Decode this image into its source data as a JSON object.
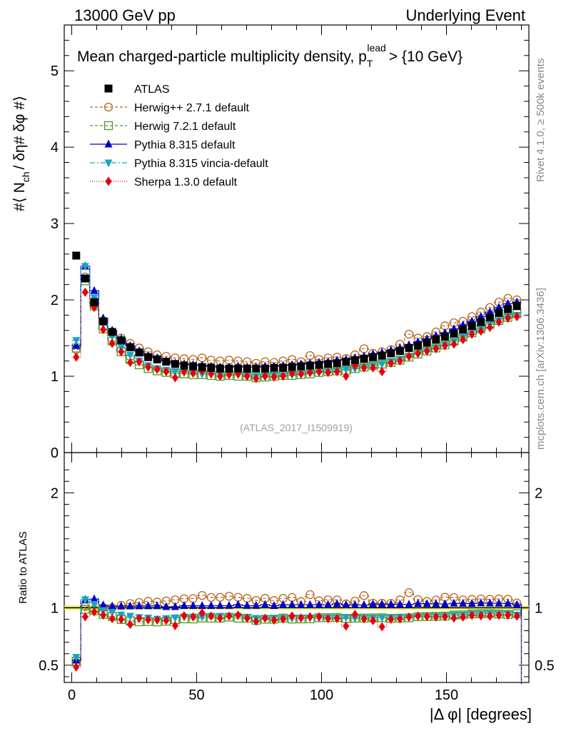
{
  "header": {
    "left": "13000 GeV pp",
    "right": "Underlying Event"
  },
  "side_labels": {
    "rivet": "Rivet 4.1.0, ≥ 500k events",
    "mcplots": "mcplots.cern.ch [arXiv:1306.3436]"
  },
  "chart_data": [
    {
      "type": "scatter",
      "title": "Mean charged-particle multiplicity density, p_T^lead > {10 GeV}",
      "title_main": "Mean charged-particle multiplicity density, p",
      "title_sup": "lead",
      "title_sub": "T",
      "title_tail": "> {10 GeV}",
      "ylabel": "#⟨ N_ch / δη# δφ #⟩",
      "ylabel_parts": [
        "#⟨ N",
        "ch",
        "/ δη# δφ #⟩"
      ],
      "watermark": "(ATLAS_2017_I1509919)",
      "xlim": [
        -3,
        183
      ],
      "ylim": [
        0,
        5.6
      ],
      "yticks": [
        0,
        1,
        2,
        3,
        4,
        5
      ],
      "ytick_labels": [
        "0",
        "1",
        "2",
        "3",
        "4",
        "5"
      ],
      "legend_position": "top-left",
      "bins": [
        1.8,
        5.4,
        9.0,
        12.6,
        16.2,
        19.8,
        23.4,
        27.0,
        30.6,
        34.2,
        37.8,
        41.4,
        45.0,
        48.6,
        52.2,
        55.8,
        59.4,
        63.0,
        66.6,
        70.2,
        73.8,
        77.4,
        81.0,
        84.6,
        88.2,
        91.8,
        95.4,
        99.0,
        102.6,
        106.2,
        109.8,
        113.4,
        117.0,
        120.6,
        124.2,
        127.8,
        131.4,
        135.0,
        138.6,
        142.2,
        145.8,
        149.4,
        153.0,
        156.6,
        160.2,
        163.8,
        167.4,
        171.0,
        174.6,
        178.2
      ],
      "series": [
        {
          "name": "ATLAS",
          "color": "#000000",
          "marker": "square-filled",
          "line": "none",
          "values": [
            2.58,
            2.28,
            1.97,
            1.72,
            1.58,
            1.47,
            1.38,
            1.31,
            1.25,
            1.22,
            1.19,
            1.16,
            1.14,
            1.13,
            1.12,
            1.11,
            1.1,
            1.1,
            1.1,
            1.1,
            1.1,
            1.1,
            1.11,
            1.11,
            1.12,
            1.13,
            1.14,
            1.15,
            1.16,
            1.17,
            1.19,
            1.21,
            1.23,
            1.25,
            1.27,
            1.3,
            1.33,
            1.37,
            1.4,
            1.44,
            1.48,
            1.52,
            1.56,
            1.61,
            1.66,
            1.71,
            1.77,
            1.83,
            1.88,
            1.92
          ]
        },
        {
          "name": "Herwig++ 2.7.1 default",
          "color": "#b5651d",
          "marker": "circle-open",
          "line": "dashed",
          "values": [
            1.35,
            2.3,
            1.94,
            1.72,
            1.58,
            1.5,
            1.43,
            1.37,
            1.32,
            1.28,
            1.26,
            1.24,
            1.23,
            1.22,
            1.24,
            1.21,
            1.2,
            1.21,
            1.2,
            1.19,
            1.17,
            1.19,
            1.18,
            1.2,
            1.22,
            1.19,
            1.27,
            1.22,
            1.24,
            1.25,
            1.23,
            1.28,
            1.36,
            1.3,
            1.32,
            1.35,
            1.42,
            1.55,
            1.5,
            1.52,
            1.58,
            1.66,
            1.7,
            1.72,
            1.78,
            1.84,
            1.9,
            1.97,
            2.02,
            2.0
          ]
        },
        {
          "name": "Herwig 7.2.1 default",
          "color": "#4f9a23",
          "marker": "square-open",
          "line": "dashed",
          "values": [
            1.37,
            2.25,
            1.92,
            1.62,
            1.46,
            1.32,
            1.22,
            1.15,
            1.1,
            1.07,
            1.05,
            1.04,
            1.03,
            1.02,
            1.02,
            1.01,
            1.0,
            1.01,
            1.0,
            1.0,
            0.98,
            0.99,
            1.0,
            1.01,
            1.01,
            1.02,
            1.03,
            1.05,
            1.06,
            1.07,
            1.08,
            1.1,
            1.12,
            1.14,
            1.16,
            1.18,
            1.21,
            1.25,
            1.29,
            1.33,
            1.37,
            1.41,
            1.46,
            1.51,
            1.57,
            1.62,
            1.68,
            1.73,
            1.77,
            1.82
          ]
        },
        {
          "name": "Pythia 8.315 default",
          "color": "#0000cc",
          "marker": "triangle-up",
          "line": "solid",
          "values": [
            1.4,
            2.44,
            2.12,
            1.76,
            1.6,
            1.49,
            1.4,
            1.33,
            1.27,
            1.24,
            1.2,
            1.17,
            1.16,
            1.15,
            1.14,
            1.13,
            1.12,
            1.12,
            1.13,
            1.12,
            1.12,
            1.13,
            1.13,
            1.14,
            1.15,
            1.16,
            1.17,
            1.18,
            1.19,
            1.21,
            1.22,
            1.24,
            1.26,
            1.29,
            1.31,
            1.34,
            1.37,
            1.41,
            1.45,
            1.49,
            1.53,
            1.57,
            1.62,
            1.67,
            1.72,
            1.78,
            1.84,
            1.9,
            1.95,
            1.97
          ]
        },
        {
          "name": "Pythia 8.315 vincia-default",
          "color": "#1aa3c2",
          "marker": "triangle-down",
          "line": "dashdot",
          "values": [
            1.47,
            2.44,
            2.03,
            1.68,
            1.52,
            1.38,
            1.28,
            1.2,
            1.14,
            1.1,
            1.08,
            1.06,
            1.05,
            1.04,
            1.03,
            1.03,
            1.02,
            1.02,
            1.02,
            1.01,
            1.0,
            1.0,
            1.01,
            1.01,
            1.02,
            1.03,
            1.04,
            1.05,
            1.06,
            1.07,
            1.09,
            1.1,
            1.12,
            1.14,
            1.16,
            1.19,
            1.22,
            1.25,
            1.29,
            1.33,
            1.37,
            1.41,
            1.46,
            1.51,
            1.57,
            1.62,
            1.68,
            1.73,
            1.78,
            1.8
          ]
        },
        {
          "name": "Sherpa 1.3.0 default",
          "color": "#e8000b",
          "marker": "diamond",
          "line": "dotted",
          "values": [
            1.25,
            2.1,
            1.9,
            1.61,
            1.43,
            1.32,
            1.18,
            1.19,
            1.12,
            1.09,
            1.06,
            0.98,
            1.06,
            1.04,
            1.07,
            1.03,
            1.0,
            1.02,
            1.03,
            1.0,
            0.97,
            1.0,
            0.99,
            1.0,
            1.04,
            1.03,
            1.05,
            1.06,
            1.05,
            1.06,
            1.0,
            1.14,
            1.11,
            1.11,
            1.06,
            1.17,
            1.2,
            1.26,
            1.3,
            1.33,
            1.36,
            1.4,
            1.42,
            1.48,
            1.55,
            1.59,
            1.64,
            1.71,
            1.76,
            1.78
          ]
        }
      ]
    },
    {
      "type": "scatter",
      "ylabel": "Ratio to ATLAS",
      "xlabel": "|Δ φ| [degrees]",
      "xlim": [
        -3,
        183
      ],
      "ylim": [
        0.35,
        2.35
      ],
      "xticks": [
        0,
        50,
        100,
        150
      ],
      "xtick_labels": [
        "0",
        "50",
        "100",
        "150"
      ],
      "yticks": [
        0.5,
        1,
        2
      ],
      "ytick_labels": [
        "0.5",
        "1",
        "2"
      ],
      "reference_band": [
        0.98,
        1.02
      ],
      "reference_color": "#f0f060",
      "series_ratio_note": "ratio = model / ATLAS, computed from the values above"
    }
  ]
}
